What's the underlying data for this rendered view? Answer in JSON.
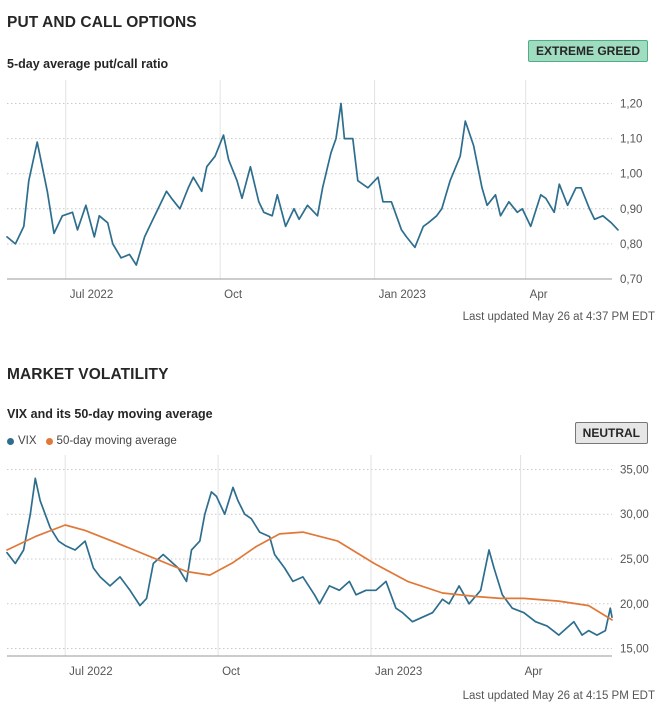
{
  "put_call": {
    "section_title": "PUT AND CALL OPTIONS",
    "subtitle": "5-day average put/call ratio",
    "badge": "EXTREME GREED",
    "badge_color": "#9fdcc0",
    "updated": "Last updated May 26 at 4:37 PM EDT"
  },
  "volatility": {
    "section_title": "MARKET VOLATILITY",
    "subtitle": "VIX and its 50-day moving average",
    "badge": "NEUTRAL",
    "badge_color": "#e6e6e6",
    "legend": [
      "VIX",
      "50-day moving average"
    ],
    "updated": "Last updated May 26 at 4:15 PM EDT"
  },
  "chart_data": [
    {
      "type": "line",
      "title": "5-day average put/call ratio",
      "x_ticks": [
        "Jul 2022",
        "Oct",
        "Jan 2023",
        "Apr"
      ],
      "y_ticks": [
        "1,20",
        "1,10",
        "1,00",
        "0,90",
        "0,80",
        "0,70"
      ],
      "ylim": [
        0.7,
        1.23
      ],
      "grid": true,
      "series": [
        {
          "color": "#2d6e8e",
          "x": [
            "2022-05-27",
            "2022-06-01",
            "2022-06-06",
            "2022-06-09",
            "2022-06-14",
            "2022-06-20",
            "2022-06-24",
            "2022-06-29",
            "2022-07-05",
            "2022-07-08",
            "2022-07-13",
            "2022-07-18",
            "2022-07-21",
            "2022-07-26",
            "2022-07-29",
            "2022-08-03",
            "2022-08-08",
            "2022-08-12",
            "2022-08-17",
            "2022-08-22",
            "2022-08-25",
            "2022-08-30",
            "2022-09-02",
            "2022-09-07",
            "2022-09-12",
            "2022-09-15",
            "2022-09-20",
            "2022-09-23",
            "2022-09-28",
            "2022-10-03",
            "2022-10-06",
            "2022-10-11",
            "2022-10-14",
            "2022-10-19",
            "2022-10-24",
            "2022-10-27",
            "2022-11-01",
            "2022-11-04",
            "2022-11-09",
            "2022-11-14",
            "2022-11-17",
            "2022-11-22",
            "2022-11-28",
            "2022-12-01",
            "2022-12-06",
            "2022-12-09",
            "2022-12-12",
            "2022-12-14",
            "2022-12-19",
            "2022-12-22",
            "2022-12-28",
            "2023-01-03",
            "2023-01-06",
            "2023-01-11",
            "2023-01-17",
            "2023-01-20",
            "2023-01-25",
            "2023-01-30",
            "2023-02-02",
            "2023-02-07",
            "2023-02-10",
            "2023-02-15",
            "2023-02-21",
            "2023-02-24",
            "2023-03-01",
            "2023-03-06",
            "2023-03-09",
            "2023-03-14",
            "2023-03-17",
            "2023-03-22",
            "2023-03-27",
            "2023-03-30",
            "2023-04-04",
            "2023-04-10",
            "2023-04-13",
            "2023-04-18",
            "2023-04-21",
            "2023-04-26",
            "2023-05-01",
            "2023-05-04",
            "2023-05-09",
            "2023-05-12",
            "2023-05-17",
            "2023-05-22",
            "2023-05-26"
          ],
          "y": [
            0.82,
            0.8,
            0.85,
            0.98,
            1.09,
            0.95,
            0.83,
            0.88,
            0.89,
            0.84,
            0.91,
            0.82,
            0.88,
            0.86,
            0.8,
            0.76,
            0.77,
            0.74,
            0.82,
            0.87,
            0.9,
            0.95,
            0.93,
            0.9,
            0.96,
            0.99,
            0.95,
            1.02,
            1.05,
            1.11,
            1.04,
            0.98,
            0.93,
            1.02,
            0.92,
            0.89,
            0.88,
            0.94,
            0.85,
            0.9,
            0.87,
            0.91,
            0.88,
            0.96,
            1.06,
            1.1,
            1.2,
            1.1,
            1.1,
            0.98,
            0.96,
            0.99,
            0.92,
            0.92,
            0.84,
            0.82,
            0.79,
            0.85,
            0.86,
            0.88,
            0.9,
            0.98,
            1.05,
            1.15,
            1.08,
            0.96,
            0.91,
            0.94,
            0.88,
            0.92,
            0.89,
            0.9,
            0.85,
            0.94,
            0.93,
            0.89,
            0.97,
            0.91,
            0.96,
            0.96,
            0.9,
            0.87,
            0.88,
            0.86,
            0.84
          ]
        }
      ]
    },
    {
      "type": "line",
      "title": "VIX and its 50-day moving average",
      "x_ticks": [
        "Jul 2022",
        "Oct",
        "Jan 2023",
        "Apr"
      ],
      "y_ticks": [
        "35,00",
        "30,00",
        "25,00",
        "20,00",
        "15,00"
      ],
      "ylim": [
        14.5,
        35.5
      ],
      "grid": true,
      "legend_placement": "top-left",
      "series": [
        {
          "name": "VIX",
          "color": "#2d6e8e",
          "x": [
            "2022-05-27",
            "2022-06-01",
            "2022-06-06",
            "2022-06-10",
            "2022-06-13",
            "2022-06-16",
            "2022-06-22",
            "2022-06-27",
            "2022-07-01",
            "2022-07-07",
            "2022-07-13",
            "2022-07-18",
            "2022-07-22",
            "2022-07-28",
            "2022-08-03",
            "2022-08-09",
            "2022-08-15",
            "2022-08-19",
            "2022-08-23",
            "2022-08-29",
            "2022-09-01",
            "2022-09-07",
            "2022-09-12",
            "2022-09-15",
            "2022-09-20",
            "2022-09-23",
            "2022-09-27",
            "2022-09-30",
            "2022-10-05",
            "2022-10-10",
            "2022-10-13",
            "2022-10-17",
            "2022-10-21",
            "2022-10-26",
            "2022-11-01",
            "2022-11-04",
            "2022-11-10",
            "2022-11-15",
            "2022-11-21",
            "2022-11-28",
            "2022-12-01",
            "2022-12-07",
            "2022-12-13",
            "2022-12-19",
            "2022-12-23",
            "2022-12-29",
            "2023-01-04",
            "2023-01-10",
            "2023-01-16",
            "2023-01-20",
            "2023-01-26",
            "2023-02-01",
            "2023-02-07",
            "2023-02-13",
            "2023-02-17",
            "2023-02-23",
            "2023-03-01",
            "2023-03-08",
            "2023-03-13",
            "2023-03-16",
            "2023-03-21",
            "2023-03-27",
            "2023-04-03",
            "2023-04-10",
            "2023-04-17",
            "2023-04-24",
            "2023-04-27",
            "2023-05-03",
            "2023-05-08",
            "2023-05-12",
            "2023-05-17",
            "2023-05-22",
            "2023-05-25",
            "2023-05-26"
          ],
          "y": [
            25.7,
            24.5,
            26.0,
            30.0,
            34.0,
            31.5,
            28.5,
            27.0,
            26.5,
            26.0,
            27.0,
            24.0,
            23.0,
            22.0,
            23.0,
            21.5,
            19.8,
            20.6,
            24.5,
            25.5,
            25.0,
            24.0,
            22.5,
            26.0,
            27.0,
            30.0,
            32.5,
            32.0,
            30.0,
            33.0,
            31.5,
            30.0,
            29.5,
            28.0,
            27.5,
            25.5,
            24.0,
            22.5,
            23.0,
            21.0,
            20.0,
            22.0,
            21.5,
            22.5,
            21.0,
            21.5,
            21.5,
            22.5,
            19.5,
            19.0,
            18.0,
            18.5,
            19.0,
            20.5,
            20.0,
            22.0,
            20.0,
            21.5,
            26.0,
            24.0,
            21.0,
            19.5,
            19.0,
            18.0,
            17.5,
            16.5,
            17.0,
            18.0,
            16.5,
            17.0,
            16.5,
            17.0,
            19.5,
            18.5
          ]
        },
        {
          "name": "50-day moving average",
          "color": "#e07838",
          "x": [
            "2022-05-27",
            "2022-06-13",
            "2022-07-01",
            "2022-07-13",
            "2022-08-01",
            "2022-08-22",
            "2022-09-12",
            "2022-09-26",
            "2022-10-10",
            "2022-10-24",
            "2022-11-07",
            "2022-11-21",
            "2022-12-12",
            "2023-01-03",
            "2023-01-23",
            "2023-02-13",
            "2023-03-06",
            "2023-03-20",
            "2023-04-03",
            "2023-04-24",
            "2023-05-12",
            "2023-05-26"
          ],
          "y": [
            26.0,
            27.5,
            28.8,
            28.2,
            26.8,
            25.2,
            23.6,
            23.2,
            24.6,
            26.4,
            27.8,
            28.0,
            27.0,
            24.5,
            22.5,
            21.2,
            20.8,
            20.6,
            20.6,
            20.3,
            19.8,
            18.2
          ]
        }
      ]
    }
  ]
}
